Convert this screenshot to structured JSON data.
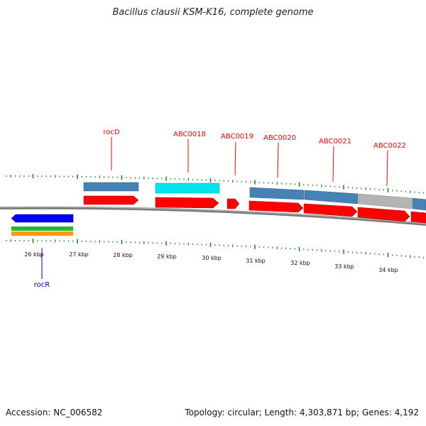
{
  "title": "Bacillus clausii KSM-K16, complete genome",
  "footer": {
    "accession": "Accession: NC_006582",
    "summary": "Topology: circular; Length: 4,303,871 bp; Genes: 4,192"
  },
  "colors": {
    "cds": "#ff0000",
    "gene_steelblue": "#4682b4",
    "gene_cyan": "#00e5ee",
    "gene_grey": "#b4b4b4",
    "rocR_blue": "#0000ff",
    "rocR_green": "#22bb22",
    "rocR_orange": "#ff9900",
    "tick": "#1a8c1a",
    "backbone": "#7a7a7a",
    "label_red": "#ff0000",
    "label_blue": "#0000cc"
  },
  "axis_labels": [
    "26 kbp",
    "27 kbp",
    "28 kbp",
    "29 kbp",
    "30 kbp",
    "31 kbp",
    "32 kbp",
    "33 kbp",
    "34 kbp"
  ],
  "gene_labels": [
    "rocD",
    "ABC0018",
    "ABC0019",
    "ABC0020",
    "ABC0021",
    "ABC0022",
    "rocR"
  ],
  "features": [
    {
      "name": "rocR",
      "strand": "-",
      "color": "blue"
    },
    {
      "name": "rocD",
      "strand": "+",
      "color": "steelblue"
    },
    {
      "name": "ABC0018",
      "strand": "+",
      "color": "cyan"
    },
    {
      "name": "ABC0019",
      "strand": "+",
      "color": "red"
    },
    {
      "name": "ABC0020",
      "strand": "+",
      "color": "steelblue"
    },
    {
      "name": "ABC0021",
      "strand": "+",
      "color": "steelblue"
    },
    {
      "name": "ABC0022",
      "strand": "+",
      "color": "grey"
    }
  ]
}
